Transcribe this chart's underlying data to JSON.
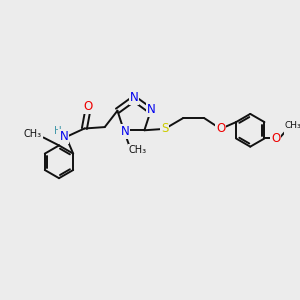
{
  "background_color": "#ececec",
  "fig_size": [
    3.0,
    3.0
  ],
  "dpi": 100,
  "atom_colors": {
    "N": "#0000ee",
    "O": "#ee0000",
    "S": "#cccc00",
    "C": "#111111",
    "H": "#4499aa"
  },
  "bond_color": "#111111",
  "bond_lw": 1.4,
  "font_size_atom": 8.5,
  "font_size_small": 7.0,
  "xlim": [
    0,
    10
  ],
  "ylim": [
    0,
    10
  ]
}
